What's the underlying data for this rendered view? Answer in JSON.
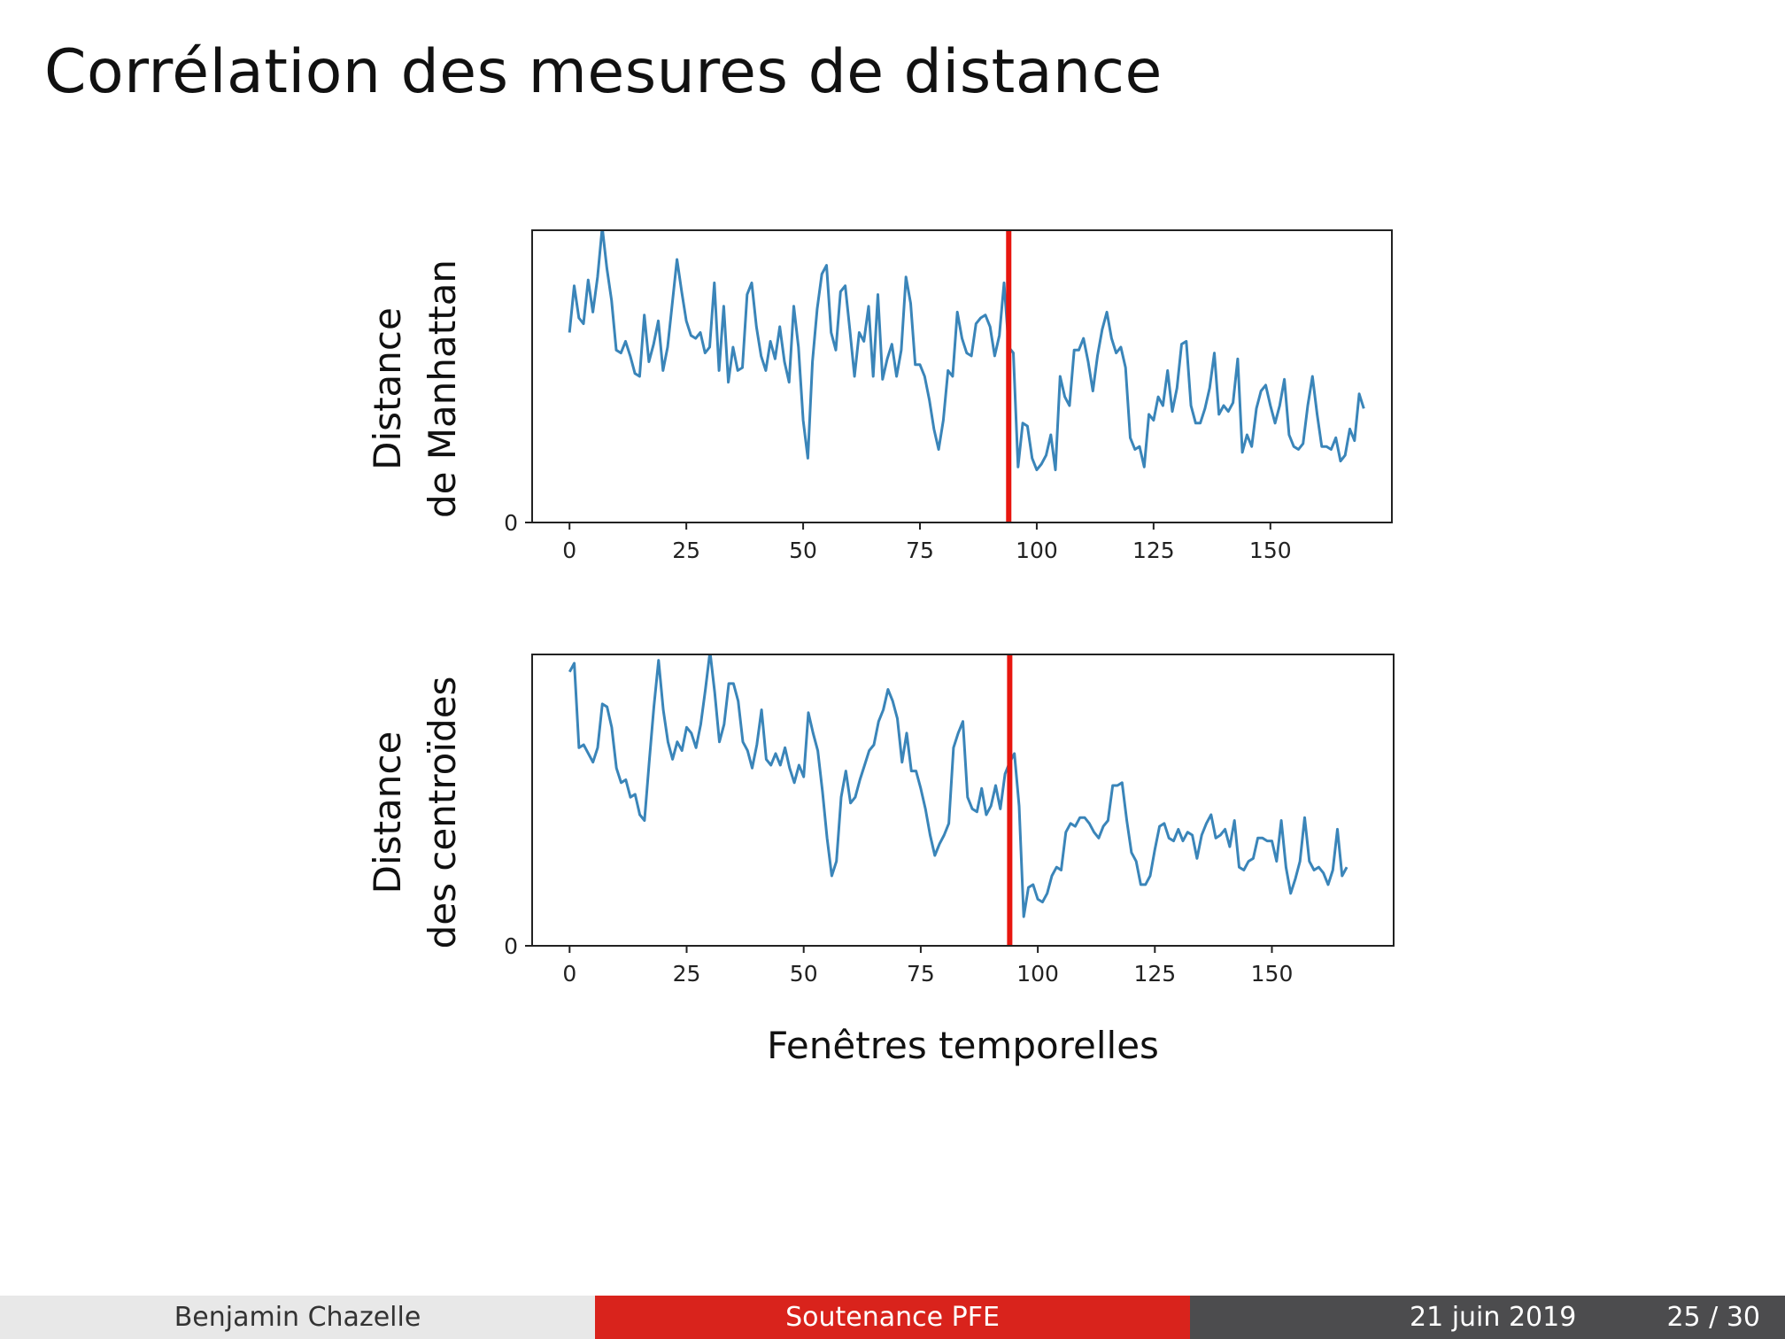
{
  "slide": {
    "title": "Corrélation des mesures de distance"
  },
  "footer": {
    "author": "Benjamin Chazelle",
    "event": "Soutenance PFE",
    "date": "21 juin 2019",
    "page": "25 / 30"
  },
  "colors": {
    "series": "#3a85b9",
    "marker": "#e8160f",
    "footer_author_bg": "#e8e8e8",
    "footer_event_bg": "#d9231c",
    "footer_date_bg": "#4c4c4e"
  },
  "chart_data": [
    {
      "type": "line",
      "ylabel_lines": [
        "Distance",
        "de Manhattan"
      ],
      "xlabel": "",
      "xlim": [
        -8,
        176
      ],
      "ylim": [
        0,
        1
      ],
      "xticks": [
        0,
        25,
        50,
        75,
        100,
        125,
        150
      ],
      "yticks": [
        0
      ],
      "vline_x": 94,
      "grid": false,
      "series": [
        {
          "values": [
            0.65,
            0.81,
            0.7,
            0.68,
            0.83,
            0.72,
            0.84,
            1.01,
            0.87,
            0.76,
            0.59,
            0.58,
            0.62,
            0.57,
            0.51,
            0.5,
            0.71,
            0.55,
            0.61,
            0.69,
            0.52,
            0.6,
            0.75,
            0.9,
            0.79,
            0.69,
            0.64,
            0.63,
            0.65,
            0.58,
            0.6,
            0.82,
            0.52,
            0.74,
            0.48,
            0.6,
            0.52,
            0.53,
            0.78,
            0.82,
            0.67,
            0.57,
            0.52,
            0.62,
            0.56,
            0.67,
            0.55,
            0.48,
            0.74,
            0.6,
            0.35,
            0.22,
            0.55,
            0.73,
            0.85,
            0.88,
            0.65,
            0.59,
            0.79,
            0.81,
            0.66,
            0.5,
            0.65,
            0.62,
            0.74,
            0.5,
            0.78,
            0.49,
            0.56,
            0.61,
            0.5,
            0.59,
            0.84,
            0.75,
            0.54,
            0.54,
            0.5,
            0.42,
            0.32,
            0.25,
            0.35,
            0.52,
            0.5,
            0.72,
            0.63,
            0.58,
            0.57,
            0.68,
            0.7,
            0.71,
            0.67,
            0.57,
            0.64,
            0.82,
            0.6,
            0.58,
            0.19,
            0.34,
            0.33,
            0.22,
            0.18,
            0.2,
            0.23,
            0.3,
            0.18,
            0.5,
            0.43,
            0.4,
            0.59,
            0.59,
            0.63,
            0.55,
            0.45,
            0.57,
            0.66,
            0.72,
            0.63,
            0.58,
            0.6,
            0.53,
            0.29,
            0.25,
            0.26,
            0.19,
            0.37,
            0.35,
            0.43,
            0.4,
            0.52,
            0.38,
            0.46,
            0.61,
            0.62,
            0.4,
            0.34,
            0.34,
            0.39,
            0.46,
            0.58,
            0.37,
            0.4,
            0.38,
            0.41,
            0.56,
            0.24,
            0.3,
            0.26,
            0.39,
            0.45,
            0.47,
            0.4,
            0.34,
            0.4,
            0.49,
            0.3,
            0.26,
            0.25,
            0.27,
            0.4,
            0.5,
            0.37,
            0.26,
            0.26,
            0.25,
            0.29,
            0.21,
            0.23,
            0.32,
            0.28,
            0.44,
            0.39
          ]
        }
      ]
    },
    {
      "type": "line",
      "ylabel_lines": [
        "Distance",
        "des centroïdes"
      ],
      "xlabel": "Fenêtres temporelles",
      "xlim": [
        -8,
        176
      ],
      "ylim": [
        0,
        1
      ],
      "xticks": [
        0,
        25,
        50,
        75,
        100,
        125,
        150
      ],
      "yticks": [
        0
      ],
      "vline_x": 94,
      "grid": false,
      "series": [
        {
          "values": [
            0.94,
            0.97,
            0.68,
            0.69,
            0.66,
            0.63,
            0.68,
            0.83,
            0.82,
            0.75,
            0.61,
            0.56,
            0.57,
            0.51,
            0.52,
            0.45,
            0.43,
            0.63,
            0.82,
            0.98,
            0.81,
            0.7,
            0.64,
            0.7,
            0.67,
            0.75,
            0.73,
            0.68,
            0.76,
            0.88,
            1.01,
            0.87,
            0.7,
            0.76,
            0.9,
            0.9,
            0.84,
            0.7,
            0.67,
            0.61,
            0.69,
            0.81,
            0.64,
            0.62,
            0.66,
            0.62,
            0.68,
            0.61,
            0.56,
            0.62,
            0.58,
            0.8,
            0.73,
            0.67,
            0.53,
            0.37,
            0.24,
            0.29,
            0.51,
            0.6,
            0.49,
            0.51,
            0.57,
            0.62,
            0.67,
            0.69,
            0.77,
            0.81,
            0.88,
            0.84,
            0.78,
            0.63,
            0.73,
            0.6,
            0.6,
            0.54,
            0.47,
            0.38,
            0.31,
            0.35,
            0.38,
            0.42,
            0.68,
            0.73,
            0.77,
            0.51,
            0.47,
            0.46,
            0.54,
            0.45,
            0.48,
            0.55,
            0.47,
            0.59,
            0.63,
            0.66,
            0.48,
            0.1,
            0.2,
            0.21,
            0.16,
            0.15,
            0.18,
            0.24,
            0.27,
            0.26,
            0.39,
            0.42,
            0.41,
            0.44,
            0.44,
            0.42,
            0.39,
            0.37,
            0.41,
            0.43,
            0.55,
            0.55,
            0.56,
            0.43,
            0.32,
            0.29,
            0.21,
            0.21,
            0.24,
            0.33,
            0.41,
            0.42,
            0.37,
            0.36,
            0.4,
            0.36,
            0.39,
            0.38,
            0.3,
            0.38,
            0.42,
            0.45,
            0.37,
            0.38,
            0.4,
            0.34,
            0.43,
            0.27,
            0.26,
            0.29,
            0.3,
            0.37,
            0.37,
            0.36,
            0.36,
            0.29,
            0.43,
            0.27,
            0.18,
            0.23,
            0.29,
            0.44,
            0.29,
            0.26,
            0.27,
            0.25,
            0.21,
            0.26,
            0.4,
            0.24,
            0.27
          ]
        }
      ]
    }
  ]
}
